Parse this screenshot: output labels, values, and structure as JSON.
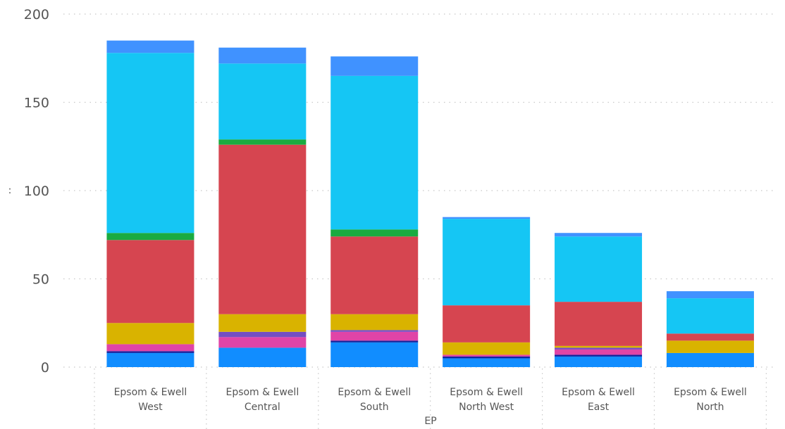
{
  "chart_data": {
    "type": "bar",
    "stacked": true,
    "title": "",
    "xlabel": "EP",
    "ylabel": ":",
    "ylim": [
      0,
      200
    ],
    "yticks": [
      0,
      50,
      100,
      150,
      200
    ],
    "grid": true,
    "categories": [
      [
        "Epsom & Ewell",
        "West"
      ],
      [
        "Epsom & Ewell",
        "Central"
      ],
      [
        "Epsom & Ewell",
        "South"
      ],
      [
        "Epsom & Ewell",
        "North West"
      ],
      [
        "Epsom & Ewell",
        "East"
      ],
      [
        "Epsom & Ewell",
        "North"
      ]
    ],
    "series": [
      {
        "color": "#118DFF",
        "values": [
          8,
          11,
          14,
          5,
          6,
          8
        ]
      },
      {
        "color": "#12239E",
        "values": [
          1,
          0,
          1,
          1,
          1,
          0
        ]
      },
      {
        "color": "#E044A7",
        "values": [
          4,
          6,
          5,
          1,
          3,
          0
        ]
      },
      {
        "color": "#744EC2",
        "values": [
          0,
          3,
          1,
          0,
          1,
          0
        ]
      },
      {
        "color": "#D9B300",
        "values": [
          12,
          10,
          9,
          7,
          1,
          7
        ]
      },
      {
        "color": "#D64550",
        "values": [
          47,
          96,
          44,
          21,
          25,
          4
        ]
      },
      {
        "color": "#1AAB40",
        "values": [
          4,
          3,
          4,
          0,
          0,
          0
        ]
      },
      {
        "color": "#15C6F4",
        "values": [
          102,
          43,
          87,
          49,
          37,
          20
        ]
      },
      {
        "color": "#4092FF",
        "values": [
          7,
          9,
          11,
          1,
          2,
          4
        ]
      }
    ]
  }
}
